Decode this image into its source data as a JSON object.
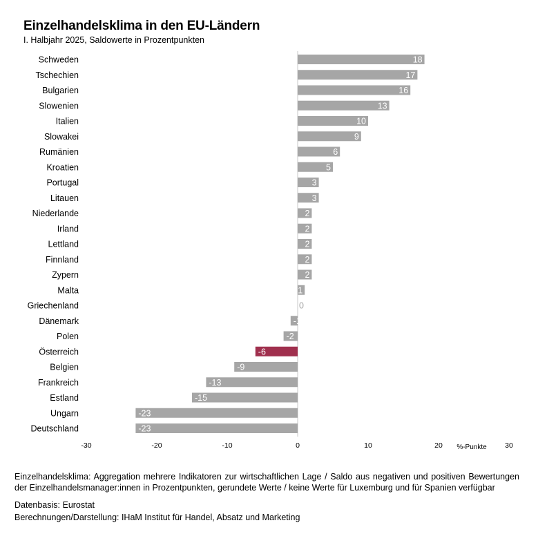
{
  "chart_data": {
    "type": "bar",
    "orientation": "horizontal",
    "title": "Einzelhandelsklima in den EU-Ländern",
    "subtitle": "I. Halbjahr 2025,  Saldowerte  in Prozentpunkten",
    "xlabel": "%-Punkte",
    "xlim": [
      -30,
      30
    ],
    "xticks": [
      "-30",
      "-20",
      "-10",
      "0",
      "10",
      "20",
      "30"
    ],
    "grid": false,
    "categories": [
      "Schweden",
      "Tschechien",
      "Bulgarien",
      "Slowenien",
      "Italien",
      "Slowakei",
      "Rumänien",
      "Kroatien",
      "Portugal",
      "Litauen",
      "Niederlande",
      "Irland",
      "Lettland",
      "Finnland",
      "Zypern",
      "Malta",
      "Griechenland",
      "Dänemark",
      "Polen",
      "Österreich",
      "Belgien",
      "Frankreich",
      "Estland",
      "Ungarn",
      "Deutschland"
    ],
    "values": [
      18,
      17,
      16,
      13,
      10,
      9,
      6,
      5,
      3,
      3,
      2,
      2,
      2,
      2,
      2,
      1,
      0,
      -1,
      -2,
      -6,
      -9,
      -13,
      -15,
      -23,
      -23
    ],
    "bar_color": "#a6a6a6",
    "highlight": {
      "category": "Österreich",
      "color": "#a0304e"
    }
  },
  "notes": {
    "description": "Einzelhandelsklima: Aggregation mehrere Indikatoren zur wirtschaftlichen Lage / Saldo aus negativen und positiven Bewertungen der Einzelhandelsmanager:innen in Prozentpunkten, gerundete Werte / keine Werte für Luxemburg und für Spanien verfügbar",
    "source": "Datenbasis: Eurostat",
    "credit": "Berechnungen/Darstellung: IHaM Institut für Handel, Absatz und Marketing"
  }
}
